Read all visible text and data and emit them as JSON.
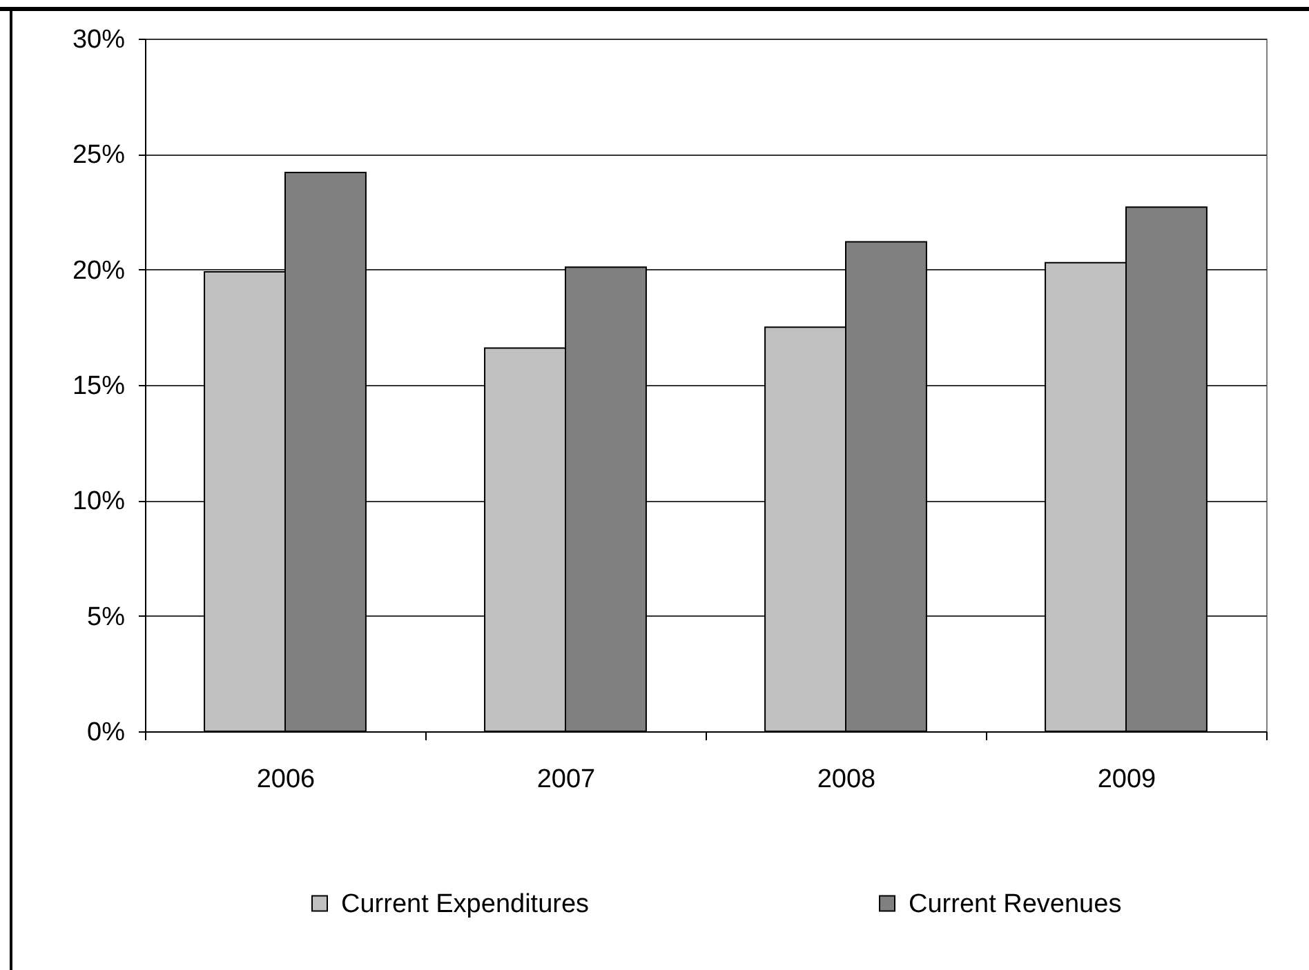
{
  "chart_data": {
    "type": "bar",
    "categories": [
      "2006",
      "2007",
      "2008",
      "2009"
    ],
    "series": [
      {
        "name": "Current Expenditures",
        "color": "#c0c0c0",
        "values": [
          19.9,
          16.6,
          17.5,
          20.3
        ]
      },
      {
        "name": "Current Revenues",
        "color": "#808080",
        "values": [
          24.2,
          20.1,
          21.2,
          22.7
        ]
      }
    ],
    "ylim": [
      0,
      30
    ],
    "yticks": [
      {
        "value": 0,
        "label": "0%"
      },
      {
        "value": 5,
        "label": "5%"
      },
      {
        "value": 10,
        "label": "10%"
      },
      {
        "value": 15,
        "label": "15%"
      },
      {
        "value": 20,
        "label": "20%"
      },
      {
        "value": 25,
        "label": "25%"
      },
      {
        "value": 30,
        "label": "30%"
      }
    ],
    "grid": "y",
    "legend": "bottom"
  }
}
